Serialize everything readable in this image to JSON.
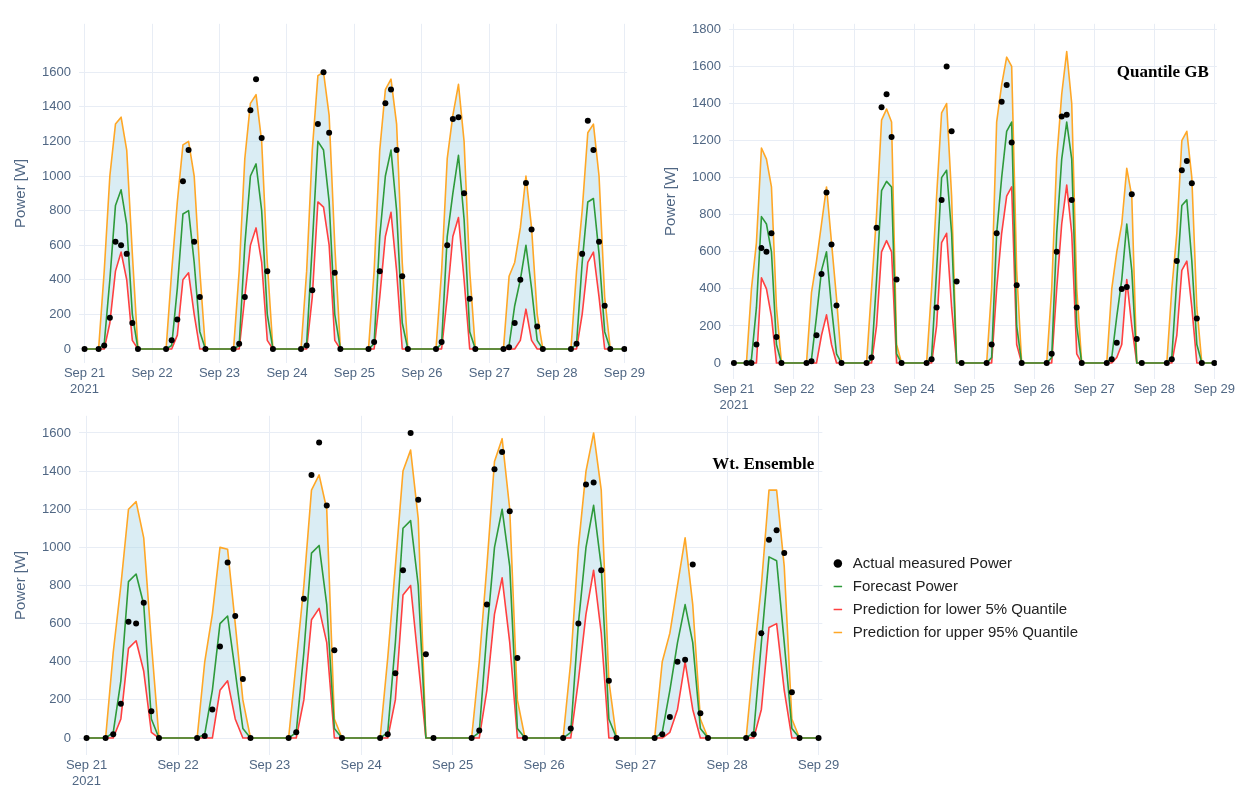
{
  "chart_data": [
    {
      "type": "line",
      "ylabel": "Power [W]",
      "ylim": [
        -80,
        1880
      ],
      "yticks": [
        0,
        200,
        400,
        600,
        800,
        1000,
        1200,
        1400,
        1600
      ],
      "xlim": [
        "2021-09-20T22:00",
        "2021-09-29T01:00"
      ],
      "xticks": [
        {
          "value": "2021-09-21",
          "label": "Sep 21\n2021"
        },
        {
          "value": "2021-09-22",
          "label": "Sep 22"
        },
        {
          "value": "2021-09-23",
          "label": "Sep 23"
        },
        {
          "value": "2021-09-24",
          "label": "Sep 24"
        },
        {
          "value": "2021-09-25",
          "label": "Sep 25"
        },
        {
          "value": "2021-09-26",
          "label": "Sep 26"
        },
        {
          "value": "2021-09-27",
          "label": "Sep 27"
        },
        {
          "value": "2021-09-28",
          "label": "Sep 28"
        },
        {
          "value": "2021-09-29",
          "label": "Sep 29"
        }
      ],
      "grid": true,
      "legend": false,
      "x": [
        "2021-09-21T00:00",
        "2021-09-21T05:00",
        "2021-09-21T07:00",
        "2021-09-21T09:00",
        "2021-09-21T11:00",
        "2021-09-21T13:00",
        "2021-09-21T15:00",
        "2021-09-21T17:00",
        "2021-09-21T19:00",
        "2021-09-22T05:00",
        "2021-09-22T07:00",
        "2021-09-22T09:00",
        "2021-09-22T11:00",
        "2021-09-22T13:00",
        "2021-09-22T15:00",
        "2021-09-22T17:00",
        "2021-09-22T19:00",
        "2021-09-23T05:00",
        "2021-09-23T07:00",
        "2021-09-23T09:00",
        "2021-09-23T11:00",
        "2021-09-23T13:00",
        "2021-09-23T15:00",
        "2021-09-23T17:00",
        "2021-09-23T19:00",
        "2021-09-24T05:00",
        "2021-09-24T07:00",
        "2021-09-24T09:00",
        "2021-09-24T11:00",
        "2021-09-24T13:00",
        "2021-09-24T15:00",
        "2021-09-24T17:00",
        "2021-09-24T19:00",
        "2021-09-25T05:00",
        "2021-09-25T07:00",
        "2021-09-25T09:00",
        "2021-09-25T11:00",
        "2021-09-25T13:00",
        "2021-09-25T15:00",
        "2021-09-25T17:00",
        "2021-09-25T19:00",
        "2021-09-26T05:00",
        "2021-09-26T07:00",
        "2021-09-26T09:00",
        "2021-09-26T11:00",
        "2021-09-26T13:00",
        "2021-09-26T15:00",
        "2021-09-26T17:00",
        "2021-09-26T19:00",
        "2021-09-27T05:00",
        "2021-09-27T07:00",
        "2021-09-27T09:00",
        "2021-09-27T11:00",
        "2021-09-27T13:00",
        "2021-09-27T15:00",
        "2021-09-27T17:00",
        "2021-09-27T19:00",
        "2021-09-28T05:00",
        "2021-09-28T07:00",
        "2021-09-28T09:00",
        "2021-09-28T11:00",
        "2021-09-28T13:00",
        "2021-09-28T15:00",
        "2021-09-28T17:00",
        "2021-09-28T19:00",
        "2021-09-29T00:00"
      ],
      "series": [
        {
          "type": "scatter",
          "marker": "circle",
          "color": "#000000",
          "values": [
            0,
            0,
            20,
            180,
            620,
            600,
            550,
            150,
            0,
            0,
            50,
            170,
            970,
            1150,
            620,
            300,
            0,
            0,
            30,
            300,
            1380,
            1560,
            1220,
            450,
            0,
            0,
            20,
            340,
            1300,
            1600,
            1250,
            440,
            0,
            0,
            40,
            450,
            1420,
            1500,
            1150,
            420,
            0,
            0,
            40,
            600,
            1330,
            1340,
            900,
            290,
            0,
            0,
            10,
            150,
            400,
            960,
            690,
            130,
            0,
            0,
            30,
            550,
            1320,
            1150,
            620,
            250,
            0,
            0
          ]
        },
        {
          "type": "line",
          "color": "#2e9a3a",
          "values": [
            0,
            0,
            30,
            400,
            830,
            920,
            720,
            200,
            0,
            0,
            20,
            350,
            780,
            800,
            500,
            100,
            0,
            0,
            20,
            600,
            1000,
            1070,
            800,
            200,
            0,
            0,
            30,
            600,
            1200,
            1150,
            850,
            200,
            0,
            0,
            30,
            650,
            1000,
            1150,
            800,
            150,
            0,
            0,
            30,
            650,
            900,
            1120,
            750,
            100,
            0,
            0,
            20,
            250,
            400,
            600,
            350,
            50,
            0,
            0,
            30,
            500,
            850,
            870,
            550,
            100,
            0,
            0
          ]
        },
        {
          "type": "line",
          "color": "#ff4040",
          "values": [
            0,
            0,
            0,
            150,
            450,
            560,
            400,
            50,
            0,
            0,
            0,
            80,
            400,
            440,
            200,
            0,
            0,
            0,
            0,
            300,
            600,
            700,
            500,
            50,
            0,
            0,
            0,
            300,
            850,
            820,
            600,
            50,
            0,
            0,
            0,
            300,
            650,
            790,
            450,
            0,
            0,
            0,
            0,
            300,
            650,
            760,
            400,
            0,
            0,
            0,
            0,
            0,
            50,
            230,
            50,
            0,
            0,
            0,
            0,
            200,
            500,
            560,
            300,
            0,
            0,
            0
          ]
        },
        {
          "type": "line",
          "color": "#ffa726",
          "values": [
            0,
            0,
            450,
            1000,
            1300,
            1340,
            1150,
            550,
            0,
            0,
            450,
            850,
            1180,
            1200,
            1000,
            450,
            0,
            0,
            450,
            1100,
            1420,
            1470,
            1200,
            500,
            0,
            0,
            450,
            1150,
            1580,
            1600,
            1350,
            600,
            0,
            0,
            450,
            1150,
            1500,
            1560,
            1300,
            500,
            0,
            0,
            450,
            1100,
            1350,
            1530,
            1200,
            450,
            0,
            0,
            420,
            500,
            700,
            1000,
            700,
            200,
            0,
            0,
            450,
            800,
            1250,
            1300,
            1000,
            300,
            0,
            0
          ]
        }
      ]
    },
    {
      "type": "line",
      "title": "Quantile GB",
      "ylabel": "Power [W]",
      "ylim": [
        -85,
        1830
      ],
      "yticks": [
        0,
        200,
        400,
        600,
        800,
        1000,
        1200,
        1400,
        1600,
        1800
      ],
      "xlim": [
        "2021-09-20T22:00",
        "2021-09-29T01:00"
      ],
      "xticks": [
        {
          "value": "2021-09-21",
          "label": "Sep 21\n2021"
        },
        {
          "value": "2021-09-22",
          "label": "Sep 22"
        },
        {
          "value": "2021-09-23",
          "label": "Sep 23"
        },
        {
          "value": "2021-09-24",
          "label": "Sep 24"
        },
        {
          "value": "2021-09-25",
          "label": "Sep 25"
        },
        {
          "value": "2021-09-26",
          "label": "Sep 26"
        },
        {
          "value": "2021-09-27",
          "label": "Sep 27"
        },
        {
          "value": "2021-09-28",
          "label": "Sep 28"
        },
        {
          "value": "2021-09-29",
          "label": "Sep 29"
        }
      ],
      "grid": true,
      "legend": false,
      "x": [
        "2021-09-21T00:00",
        "2021-09-21T05:00",
        "2021-09-21T07:00",
        "2021-09-21T09:00",
        "2021-09-21T11:00",
        "2021-09-21T13:00",
        "2021-09-21T15:00",
        "2021-09-21T17:00",
        "2021-09-21T19:00",
        "2021-09-22T05:00",
        "2021-09-22T07:00",
        "2021-09-22T09:00",
        "2021-09-22T11:00",
        "2021-09-22T13:00",
        "2021-09-22T15:00",
        "2021-09-22T17:00",
        "2021-09-22T19:00",
        "2021-09-23T05:00",
        "2021-09-23T07:00",
        "2021-09-23T09:00",
        "2021-09-23T11:00",
        "2021-09-23T13:00",
        "2021-09-23T15:00",
        "2021-09-23T17:00",
        "2021-09-23T19:00",
        "2021-09-24T05:00",
        "2021-09-24T07:00",
        "2021-09-24T09:00",
        "2021-09-24T11:00",
        "2021-09-24T13:00",
        "2021-09-24T15:00",
        "2021-09-24T17:00",
        "2021-09-24T19:00",
        "2021-09-25T05:00",
        "2021-09-25T07:00",
        "2021-09-25T09:00",
        "2021-09-25T11:00",
        "2021-09-25T13:00",
        "2021-09-25T15:00",
        "2021-09-25T17:00",
        "2021-09-25T19:00",
        "2021-09-26T05:00",
        "2021-09-26T07:00",
        "2021-09-26T09:00",
        "2021-09-26T11:00",
        "2021-09-26T13:00",
        "2021-09-26T15:00",
        "2021-09-26T17:00",
        "2021-09-26T19:00",
        "2021-09-27T05:00",
        "2021-09-27T07:00",
        "2021-09-27T09:00",
        "2021-09-27T11:00",
        "2021-09-27T13:00",
        "2021-09-27T15:00",
        "2021-09-27T17:00",
        "2021-09-27T19:00",
        "2021-09-28T05:00",
        "2021-09-28T07:00",
        "2021-09-28T09:00",
        "2021-09-28T11:00",
        "2021-09-28T13:00",
        "2021-09-28T15:00",
        "2021-09-28T17:00",
        "2021-09-28T19:00",
        "2021-09-29T00:00"
      ],
      "series": [
        {
          "type": "scatter",
          "marker": "circle",
          "color": "#000000",
          "values": [
            0,
            0,
            0,
            100,
            620,
            600,
            700,
            140,
            0,
            0,
            10,
            150,
            480,
            920,
            640,
            310,
            0,
            0,
            30,
            730,
            1380,
            1450,
            1220,
            450,
            0,
            0,
            20,
            300,
            880,
            1600,
            1250,
            440,
            0,
            0,
            100,
            700,
            1410,
            1500,
            1190,
            420,
            0,
            0,
            50,
            600,
            1330,
            1340,
            880,
            300,
            0,
            0,
            20,
            110,
            400,
            410,
            910,
            130,
            0,
            0,
            20,
            550,
            1040,
            1090,
            970,
            240,
            0,
            0
          ]
        },
        {
          "type": "line",
          "color": "#2e9a3a",
          "values": [
            0,
            0,
            20,
            300,
            790,
            750,
            600,
            100,
            0,
            0,
            20,
            250,
            500,
            600,
            300,
            50,
            0,
            0,
            20,
            450,
            930,
            980,
            950,
            50,
            0,
            0,
            30,
            500,
            1000,
            1040,
            700,
            0,
            0,
            0,
            30,
            700,
            1000,
            1250,
            1300,
            200,
            0,
            0,
            30,
            700,
            1100,
            1300,
            1100,
            200,
            0,
            0,
            30,
            250,
            450,
            750,
            500,
            0,
            0,
            0,
            30,
            450,
            850,
            880,
            550,
            100,
            0,
            0
          ]
        },
        {
          "type": "line",
          "color": "#ff4040",
          "values": [
            0,
            0,
            0,
            0,
            460,
            400,
            250,
            0,
            0,
            0,
            0,
            0,
            150,
            260,
            100,
            0,
            0,
            0,
            0,
            200,
            600,
            660,
            600,
            0,
            0,
            0,
            0,
            200,
            650,
            700,
            300,
            0,
            0,
            0,
            0,
            400,
            700,
            900,
            950,
            100,
            0,
            0,
            0,
            400,
            750,
            960,
            700,
            50,
            0,
            0,
            0,
            30,
            100,
            450,
            200,
            0,
            0,
            0,
            0,
            150,
            500,
            550,
            300,
            0,
            0,
            0
          ]
        },
        {
          "type": "line",
          "color": "#ffa726",
          "values": [
            0,
            0,
            400,
            650,
            1160,
            1100,
            950,
            300,
            0,
            0,
            380,
            550,
            750,
            950,
            650,
            350,
            0,
            0,
            400,
            800,
            1310,
            1370,
            1300,
            100,
            0,
            0,
            400,
            900,
            1350,
            1400,
            900,
            0,
            0,
            0,
            400,
            1300,
            1500,
            1650,
            1600,
            500,
            0,
            0,
            400,
            1100,
            1450,
            1680,
            1400,
            400,
            0,
            0,
            400,
            600,
            750,
            1050,
            900,
            0,
            0,
            0,
            400,
            700,
            1200,
            1250,
            1000,
            300,
            0,
            0
          ]
        }
      ]
    },
    {
      "type": "line",
      "title": "Wt. Ensemble",
      "ylabel": "Power [W]",
      "ylim": [
        -88,
        1690
      ],
      "yticks": [
        0,
        200,
        400,
        600,
        800,
        1000,
        1200,
        1400,
        1600
      ],
      "xlim": [
        "2021-09-20T22:00",
        "2021-09-29T01:00"
      ],
      "xticks": [
        {
          "value": "2021-09-21",
          "label": "Sep 21\n2021"
        },
        {
          "value": "2021-09-22",
          "label": "Sep 22"
        },
        {
          "value": "2021-09-23",
          "label": "Sep 23"
        },
        {
          "value": "2021-09-24",
          "label": "Sep 24"
        },
        {
          "value": "2021-09-25",
          "label": "Sep 25"
        },
        {
          "value": "2021-09-26",
          "label": "Sep 26"
        },
        {
          "value": "2021-09-27",
          "label": "Sep 27"
        },
        {
          "value": "2021-09-28",
          "label": "Sep 28"
        },
        {
          "value": "2021-09-29",
          "label": "Sep 29"
        }
      ],
      "grid": true,
      "legend": "right",
      "x": [
        "2021-09-21T00:00",
        "2021-09-21T05:00",
        "2021-09-21T07:00",
        "2021-09-21T09:00",
        "2021-09-21T11:00",
        "2021-09-21T13:00",
        "2021-09-21T15:00",
        "2021-09-21T17:00",
        "2021-09-21T19:00",
        "2021-09-22T05:00",
        "2021-09-22T07:00",
        "2021-09-22T09:00",
        "2021-09-22T11:00",
        "2021-09-22T13:00",
        "2021-09-22T15:00",
        "2021-09-22T17:00",
        "2021-09-22T19:00",
        "2021-09-23T05:00",
        "2021-09-23T07:00",
        "2021-09-23T09:00",
        "2021-09-23T11:00",
        "2021-09-23T13:00",
        "2021-09-23T15:00",
        "2021-09-23T17:00",
        "2021-09-23T19:00",
        "2021-09-24T05:00",
        "2021-09-24T07:00",
        "2021-09-24T09:00",
        "2021-09-24T11:00",
        "2021-09-24T13:00",
        "2021-09-24T15:00",
        "2021-09-24T17:00",
        "2021-09-24T19:00",
        "2021-09-25T05:00",
        "2021-09-25T07:00",
        "2021-09-25T09:00",
        "2021-09-25T11:00",
        "2021-09-25T13:00",
        "2021-09-25T15:00",
        "2021-09-25T17:00",
        "2021-09-25T19:00",
        "2021-09-26T05:00",
        "2021-09-26T07:00",
        "2021-09-26T09:00",
        "2021-09-26T11:00",
        "2021-09-26T13:00",
        "2021-09-26T15:00",
        "2021-09-26T17:00",
        "2021-09-26T19:00",
        "2021-09-27T05:00",
        "2021-09-27T07:00",
        "2021-09-27T09:00",
        "2021-09-27T11:00",
        "2021-09-27T13:00",
        "2021-09-27T15:00",
        "2021-09-27T17:00",
        "2021-09-27T19:00",
        "2021-09-28T05:00",
        "2021-09-28T07:00",
        "2021-09-28T09:00",
        "2021-09-28T11:00",
        "2021-09-28T13:00",
        "2021-09-28T15:00",
        "2021-09-28T17:00",
        "2021-09-28T19:00",
        "2021-09-29T00:00"
      ],
      "series": [
        {
          "name": "Actual measured Power",
          "type": "scatter",
          "marker": "circle",
          "color": "#000000",
          "values": [
            0,
            0,
            20,
            180,
            610,
            600,
            710,
            140,
            0,
            0,
            10,
            150,
            480,
            920,
            640,
            310,
            0,
            0,
            30,
            730,
            1380,
            1550,
            1220,
            460,
            0,
            0,
            20,
            340,
            880,
            1600,
            1250,
            440,
            0,
            0,
            40,
            700,
            1410,
            1500,
            1190,
            420,
            0,
            0,
            50,
            600,
            1330,
            1340,
            880,
            300,
            0,
            0,
            20,
            110,
            400,
            410,
            910,
            130,
            0,
            0,
            20,
            550,
            1040,
            1090,
            970,
            240,
            0,
            0
          ]
        },
        {
          "name": "Forecast Power",
          "type": "line",
          "color": "#2e9a3a",
          "values": [
            0,
            0,
            30,
            300,
            820,
            860,
            700,
            100,
            0,
            0,
            20,
            250,
            600,
            640,
            350,
            50,
            0,
            0,
            30,
            450,
            970,
            1010,
            700,
            50,
            0,
            0,
            30,
            500,
            1100,
            1140,
            800,
            0,
            0,
            0,
            30,
            550,
            1000,
            1200,
            900,
            50,
            0,
            0,
            30,
            600,
            1000,
            1220,
            900,
            100,
            0,
            0,
            30,
            250,
            500,
            700,
            500,
            50,
            0,
            0,
            30,
            500,
            950,
            930,
            500,
            50,
            0,
            0
          ]
        },
        {
          "name": "Prediction for lower 5% Quantile",
          "type": "line",
          "color": "#ff4040",
          "values": [
            0,
            0,
            0,
            100,
            470,
            510,
            350,
            30,
            0,
            0,
            0,
            0,
            250,
            300,
            100,
            0,
            0,
            0,
            0,
            200,
            620,
            680,
            500,
            0,
            0,
            0,
            0,
            200,
            750,
            800,
            400,
            0,
            0,
            0,
            0,
            250,
            650,
            840,
            500,
            0,
            0,
            0,
            0,
            300,
            650,
            880,
            550,
            0,
            0,
            0,
            0,
            30,
            150,
            400,
            150,
            0,
            0,
            0,
            0,
            150,
            580,
            600,
            250,
            0,
            0,
            0
          ]
        },
        {
          "name": "Prediction for upper 95% Quantile",
          "type": "line",
          "color": "#ffa726",
          "values": [
            0,
            0,
            450,
            800,
            1200,
            1240,
            1050,
            500,
            0,
            0,
            400,
            650,
            1000,
            990,
            600,
            200,
            0,
            0,
            400,
            800,
            1300,
            1380,
            1200,
            100,
            0,
            0,
            420,
            900,
            1400,
            1510,
            1150,
            0,
            0,
            0,
            400,
            900,
            1450,
            1570,
            1200,
            200,
            0,
            0,
            400,
            1000,
            1400,
            1600,
            1300,
            300,
            0,
            0,
            400,
            550,
            800,
            1050,
            700,
            100,
            0,
            0,
            420,
            800,
            1300,
            1300,
            900,
            100,
            0,
            0
          ]
        }
      ]
    }
  ]
}
